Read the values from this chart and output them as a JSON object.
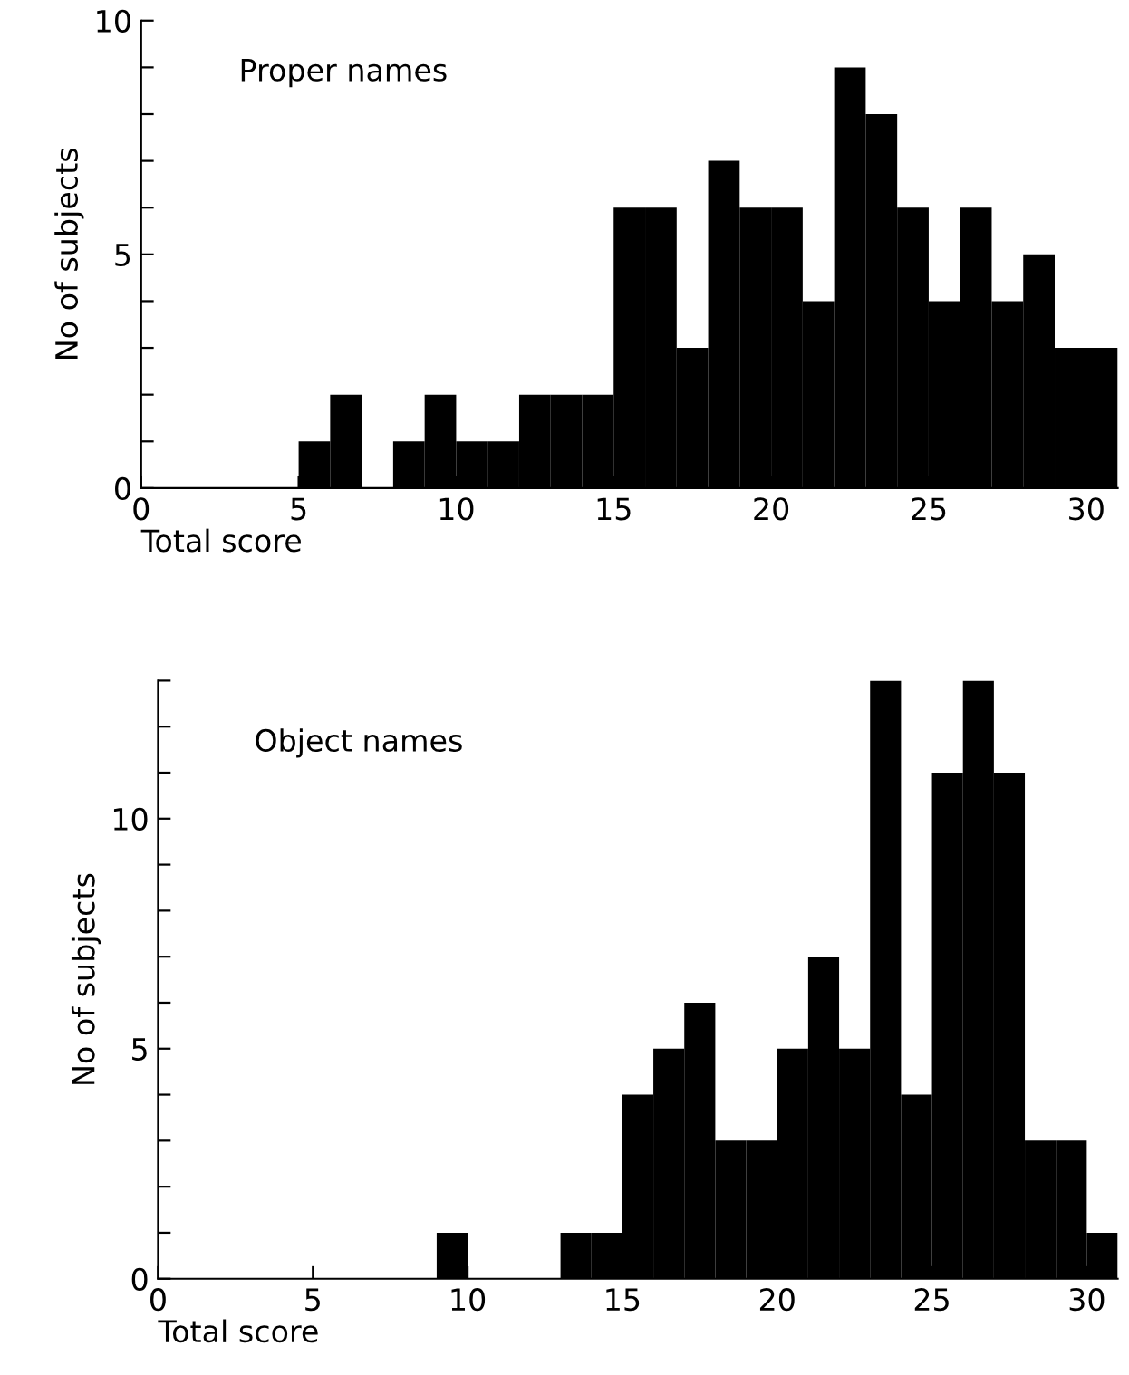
{
  "chart_data": [
    {
      "type": "histogram",
      "annotations": [
        "Proper names"
      ],
      "xlabel": "Total score",
      "ylabel": "No of subjects",
      "bins": [
        0,
        1,
        2,
        3,
        4,
        5,
        6,
        7,
        8,
        9,
        10,
        11,
        12,
        13,
        14,
        15,
        16,
        17,
        18,
        19,
        20,
        21,
        22,
        23,
        24,
        25,
        26,
        27,
        28,
        29,
        30,
        31
      ],
      "values": [
        0,
        0,
        0,
        0,
        0,
        1,
        2,
        0,
        1,
        2,
        1,
        1,
        2,
        2,
        2,
        6,
        6,
        3,
        7,
        6,
        6,
        4,
        9,
        8,
        6,
        4,
        6,
        4,
        5,
        3,
        3
      ],
      "color": "#000000",
      "xlim": [
        0,
        31
      ],
      "xticks": [
        0,
        5,
        10,
        15,
        20,
        25,
        30
      ],
      "ylim": [
        0,
        10
      ],
      "yticks": [
        0,
        {
          "value": 1,
          "label": null
        },
        {
          "value": 2,
          "label": null
        },
        {
          "value": 3,
          "label": null
        },
        {
          "value": 4,
          "label": null
        },
        5,
        {
          "value": 6,
          "label": null
        },
        {
          "value": 7,
          "label": null
        },
        {
          "value": 8,
          "label": null
        },
        {
          "value": 9,
          "label": null
        },
        10
      ]
    },
    {
      "type": "histogram",
      "annotations": [
        "Object names"
      ],
      "xlabel": "Total score",
      "ylabel": "No of subjects",
      "bins": [
        0,
        1,
        2,
        3,
        4,
        5,
        6,
        7,
        8,
        9,
        10,
        11,
        12,
        13,
        14,
        15,
        16,
        17,
        18,
        19,
        20,
        21,
        22,
        23,
        24,
        25,
        26,
        27,
        28,
        29,
        30,
        31
      ],
      "values": [
        0,
        0,
        0,
        0,
        0,
        0,
        0,
        0,
        0,
        1,
        0,
        0,
        0,
        1,
        1,
        4,
        5,
        6,
        3,
        3,
        5,
        7,
        5,
        13,
        4,
        11,
        13,
        11,
        3,
        3,
        1
      ],
      "color": "#000000",
      "xlim": [
        0,
        31
      ],
      "xticks": [
        0,
        5,
        10,
        15,
        20,
        25,
        30
      ],
      "ylim": [
        0,
        13
      ],
      "yticks": [
        0,
        {
          "value": 1,
          "label": null
        },
        {
          "value": 2,
          "label": null
        },
        {
          "value": 3,
          "label": null
        },
        {
          "value": 4,
          "label": null
        },
        5,
        {
          "value": 6,
          "label": null
        },
        {
          "value": 7,
          "label": null
        },
        {
          "value": 8,
          "label": null
        },
        {
          "value": 9,
          "label": null
        },
        10,
        {
          "value": 11,
          "label": null
        },
        {
          "value": 12,
          "label": null
        },
        {
          "value": 13,
          "label": null
        }
      ]
    }
  ]
}
